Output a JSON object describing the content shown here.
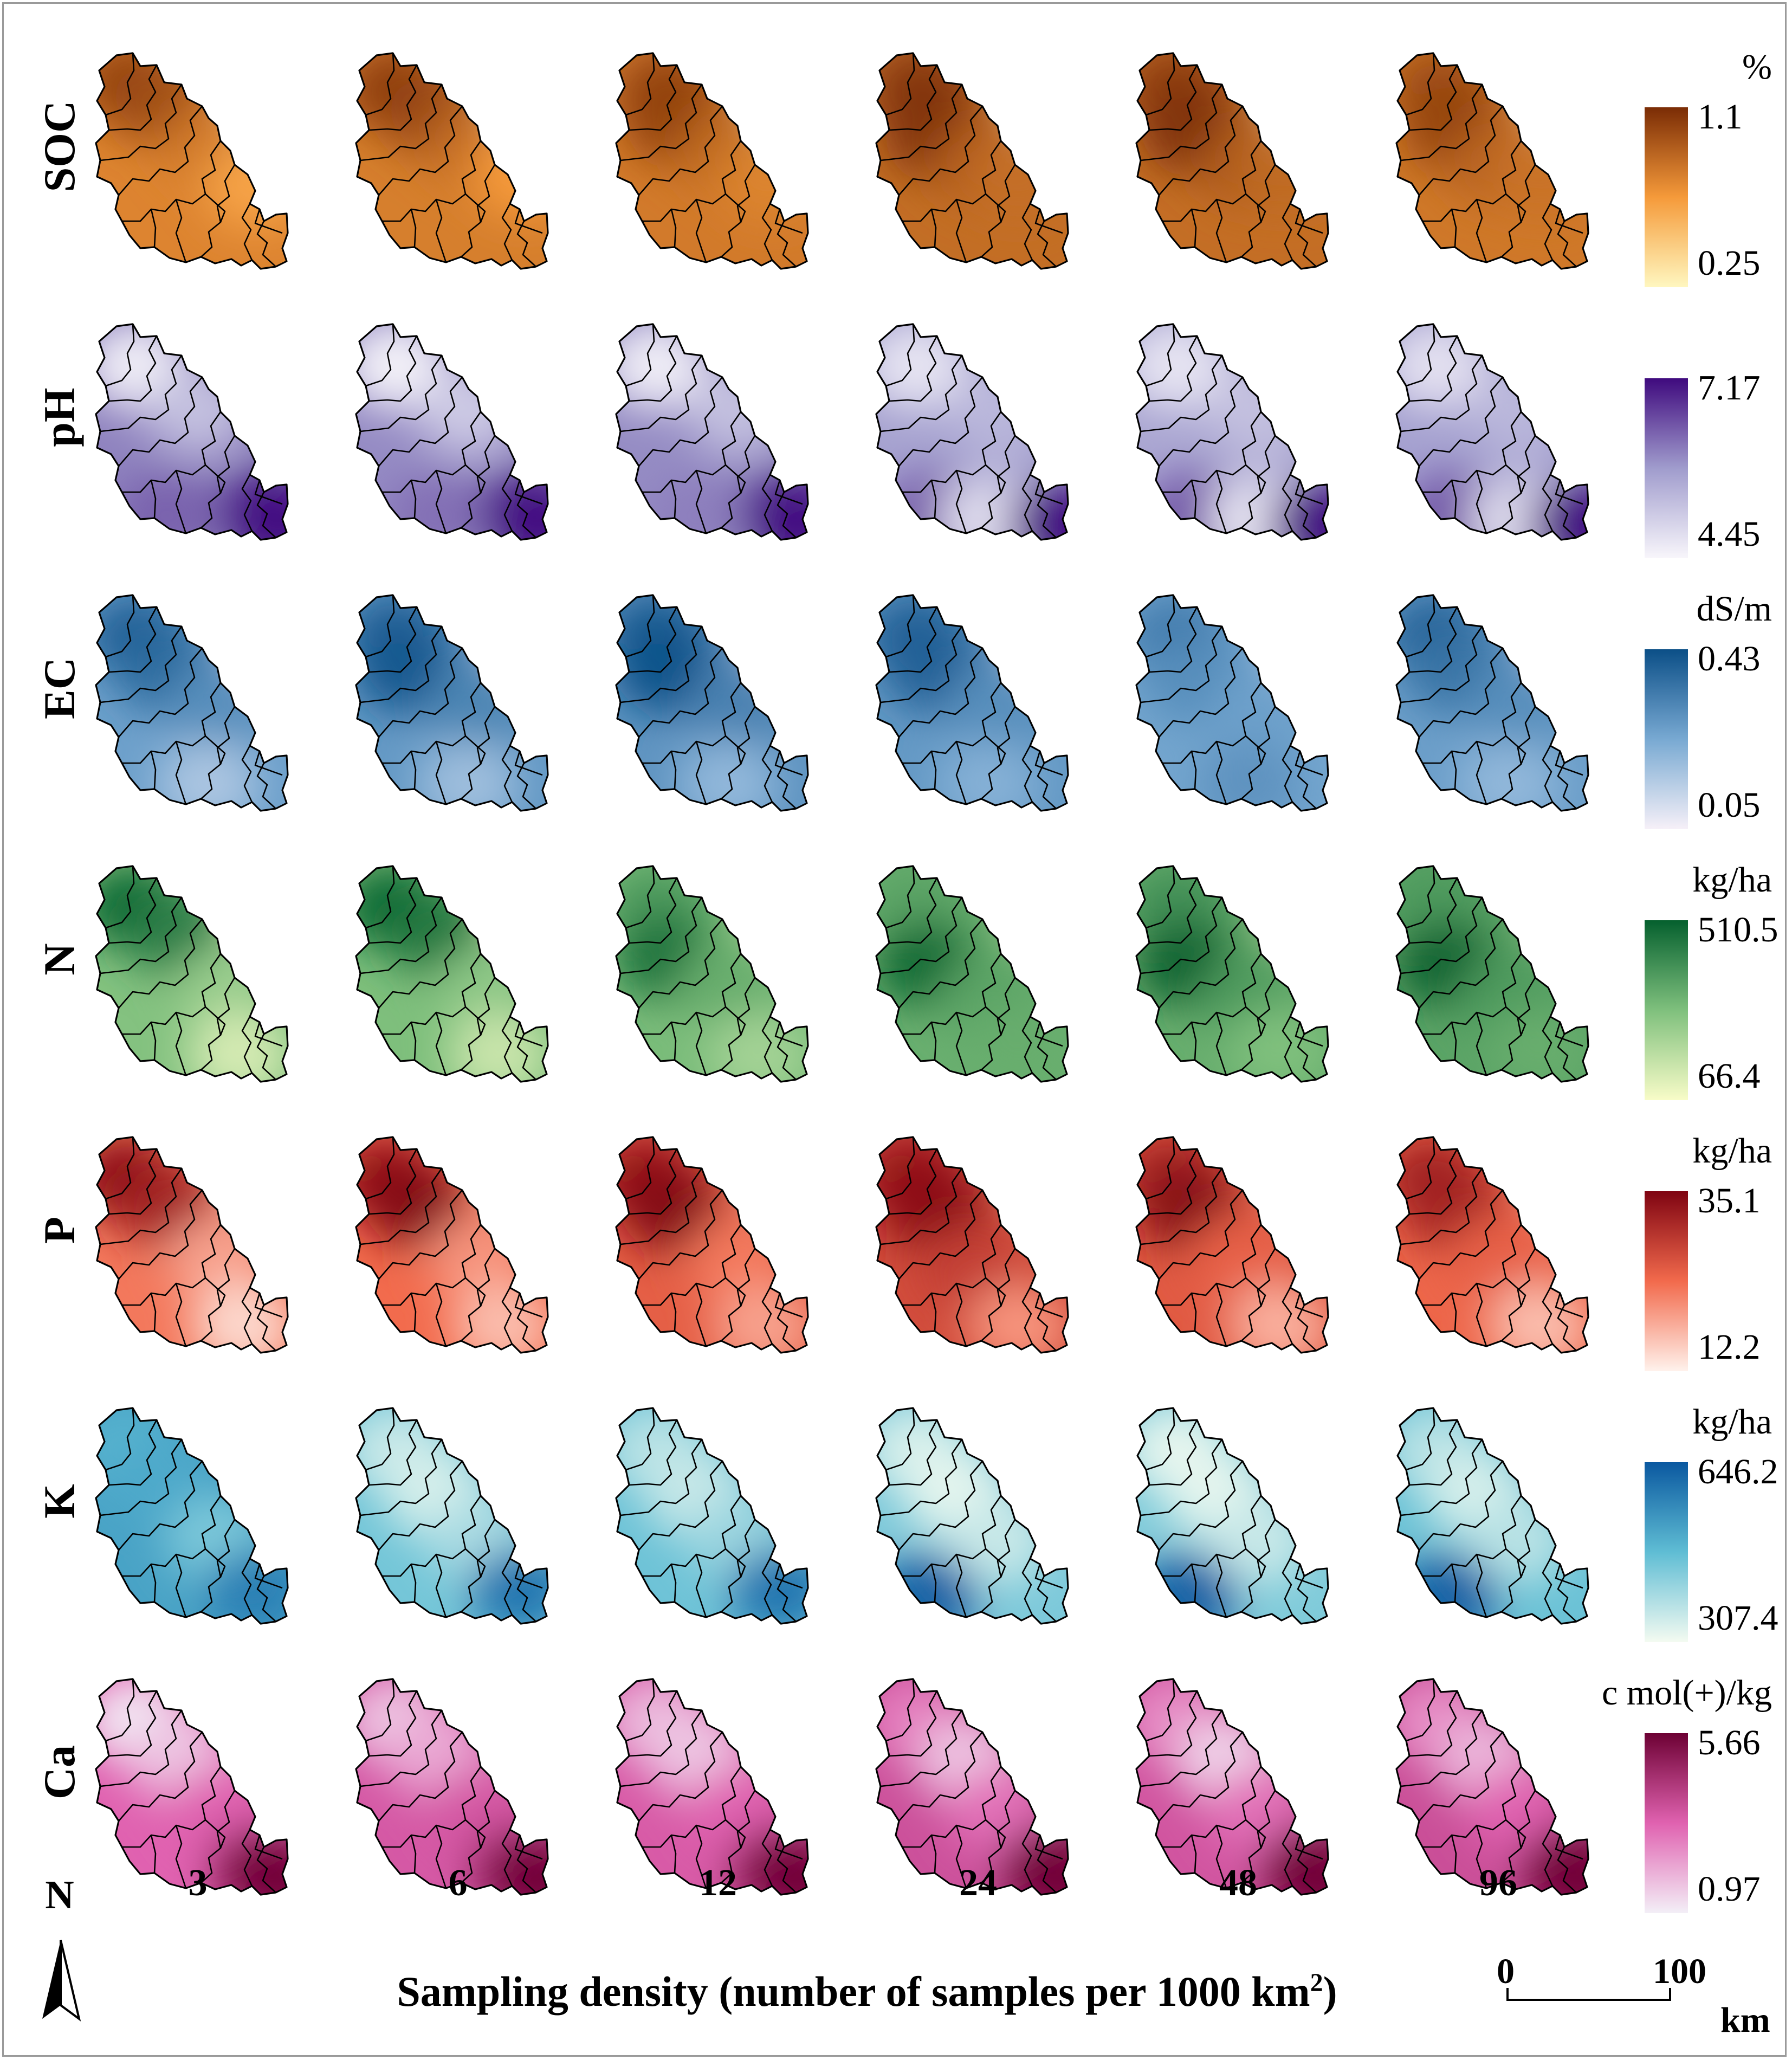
{
  "rows": [
    {
      "label": "SOC",
      "unit": "%",
      "legend_max": "1.1",
      "legend_min": "0.25",
      "color_low": "#fff7c0",
      "color_mid": "#f59a3a",
      "color_high": "#7a2c05"
    },
    {
      "label": "pH",
      "unit": "",
      "legend_max": "7.17",
      "legend_min": "4.45",
      "color_low": "#f8f6fb",
      "color_mid": "#a09ccd",
      "color_high": "#3f0a7e"
    },
    {
      "label": "EC",
      "unit": "dS/m",
      "legend_max": "0.43",
      "legend_min": "0.05",
      "color_low": "#f6f0f8",
      "color_mid": "#78a9d2",
      "color_high": "#0b4f87"
    },
    {
      "label": "N",
      "unit": "kg/ha",
      "legend_max": "510.5",
      "legend_min": "66.4",
      "color_low": "#f8fcc8",
      "color_mid": "#7fc07d",
      "color_high": "#05602e"
    },
    {
      "label": "P",
      "unit": "kg/ha",
      "legend_max": "35.1",
      "legend_min": "12.2",
      "color_low": "#fff2ec",
      "color_mid": "#f26a4c",
      "color_high": "#7f0412"
    },
    {
      "label": "K",
      "unit": "kg/ha",
      "legend_max": "646.2",
      "legend_min": "307.4",
      "color_low": "#f4fbf1",
      "color_mid": "#5fbdd4",
      "color_high": "#0a58a0"
    },
    {
      "label": "Ca",
      "unit": "c mol(+)/kg",
      "legend_max": "5.66",
      "legend_min": "0.97",
      "color_low": "#f3eff7",
      "color_mid": "#e062b0",
      "color_high": "#6d0134"
    }
  ],
  "columns": [
    "3",
    "6",
    "12",
    "24",
    "48",
    "96"
  ],
  "x_axis_title": "Sampling density (number of samples per 1000 km",
  "x_axis_title_sup": "2",
  "x_axis_title_end": ")",
  "north_label": "N",
  "scale_bar": {
    "start": "0",
    "end": "100",
    "unit": "km"
  },
  "maps": {
    "SOC": [
      [
        [
          0.92,
          0.18,
          0.16
        ],
        [
          0.85,
          0.32,
          0.24
        ],
        [
          0.65,
          0.58,
          0.42
        ],
        [
          0.45,
          0.78,
          0.6
        ],
        [
          0.12,
          0.93,
          0.2
        ]
      ],
      [
        [
          0.92,
          0.2,
          0.18
        ],
        [
          0.88,
          0.4,
          0.3
        ],
        [
          0.7,
          0.6,
          0.42
        ],
        [
          0.5,
          0.82,
          0.55
        ],
        [
          0.12,
          0.93,
          0.2
        ]
      ],
      [
        [
          0.9,
          0.25,
          0.2
        ],
        [
          0.9,
          0.3,
          0.32
        ],
        [
          0.72,
          0.55,
          0.45
        ],
        [
          0.6,
          0.75,
          0.58
        ],
        [
          0.1,
          0.93,
          0.2
        ]
      ],
      [
        [
          0.95,
          0.22,
          0.18
        ],
        [
          0.98,
          0.3,
          0.38
        ],
        [
          0.78,
          0.52,
          0.5
        ],
        [
          0.7,
          0.7,
          0.56
        ],
        [
          0.1,
          0.93,
          0.2
        ]
      ],
      [
        [
          0.92,
          0.2,
          0.18
        ],
        [
          0.98,
          0.28,
          0.36
        ],
        [
          0.8,
          0.55,
          0.5
        ],
        [
          0.72,
          0.74,
          0.52
        ],
        [
          0.08,
          0.93,
          0.2
        ]
      ],
      [
        [
          0.85,
          0.22,
          0.18
        ],
        [
          0.9,
          0.3,
          0.36
        ],
        [
          0.75,
          0.5,
          0.5
        ],
        [
          0.68,
          0.72,
          0.55
        ],
        [
          0.1,
          0.93,
          0.2
        ]
      ]
    ],
    "pH": [
      [
        [
          0.05,
          0.2,
          0.2
        ],
        [
          0.3,
          0.5,
          0.4
        ],
        [
          0.7,
          0.35,
          0.86
        ],
        [
          0.9,
          0.85,
          0.84
        ],
        [
          0.98,
          0.9,
          0.9
        ]
      ],
      [
        [
          0.03,
          0.2,
          0.2
        ],
        [
          0.25,
          0.55,
          0.4
        ],
        [
          0.65,
          0.4,
          0.86
        ],
        [
          0.88,
          0.85,
          0.84
        ],
        [
          0.98,
          0.9,
          0.9
        ]
      ],
      [
        [
          0.05,
          0.2,
          0.2
        ],
        [
          0.3,
          0.6,
          0.4
        ],
        [
          0.6,
          0.4,
          0.86
        ],
        [
          0.85,
          0.85,
          0.84
        ],
        [
          0.98,
          0.9,
          0.9
        ]
      ],
      [
        [
          0.1,
          0.2,
          0.2
        ],
        [
          0.35,
          0.6,
          0.4
        ],
        [
          0.75,
          0.3,
          0.86
        ],
        [
          0.15,
          0.55,
          0.88
        ],
        [
          0.98,
          0.9,
          0.9
        ]
      ],
      [
        [
          0.1,
          0.2,
          0.2
        ],
        [
          0.3,
          0.6,
          0.4
        ],
        [
          0.75,
          0.3,
          0.86
        ],
        [
          0.1,
          0.6,
          0.88
        ],
        [
          0.98,
          0.9,
          0.9
        ]
      ],
      [
        [
          0.12,
          0.2,
          0.2
        ],
        [
          0.35,
          0.6,
          0.4
        ],
        [
          0.75,
          0.3,
          0.86
        ],
        [
          0.15,
          0.6,
          0.88
        ],
        [
          0.98,
          0.9,
          0.9
        ]
      ]
    ],
    "EC": [
      [
        [
          0.9,
          0.2,
          0.2
        ],
        [
          0.85,
          0.35,
          0.35
        ],
        [
          0.65,
          0.6,
          0.5
        ],
        [
          0.3,
          0.55,
          0.85
        ],
        [
          0.05,
          0.93,
          0.2
        ]
      ],
      [
        [
          0.9,
          0.2,
          0.2
        ],
        [
          0.95,
          0.25,
          0.35
        ],
        [
          0.7,
          0.6,
          0.5
        ],
        [
          0.35,
          0.55,
          0.85
        ],
        [
          0.05,
          0.93,
          0.2
        ]
      ],
      [
        [
          0.92,
          0.2,
          0.2
        ],
        [
          0.98,
          0.25,
          0.35
        ],
        [
          0.72,
          0.6,
          0.5
        ],
        [
          0.4,
          0.55,
          0.85
        ],
        [
          0.05,
          0.93,
          0.2
        ]
      ],
      [
        [
          0.9,
          0.2,
          0.2
        ],
        [
          0.9,
          0.3,
          0.35
        ],
        [
          0.65,
          0.6,
          0.5
        ],
        [
          0.45,
          0.55,
          0.85
        ],
        [
          0.05,
          0.93,
          0.2
        ]
      ],
      [
        [
          0.75,
          0.2,
          0.2
        ],
        [
          0.65,
          0.3,
          0.4
        ],
        [
          0.55,
          0.6,
          0.55
        ],
        [
          0.62,
          0.55,
          0.85
        ],
        [
          0.05,
          0.93,
          0.2
        ]
      ],
      [
        [
          0.9,
          0.2,
          0.2
        ],
        [
          0.8,
          0.3,
          0.35
        ],
        [
          0.65,
          0.6,
          0.5
        ],
        [
          0.4,
          0.55,
          0.85
        ],
        [
          0.05,
          0.93,
          0.2
        ]
      ]
    ],
    "N": [
      [
        [
          0.95,
          0.18,
          0.2
        ],
        [
          0.85,
          0.4,
          0.32
        ],
        [
          0.4,
          0.65,
          0.55
        ],
        [
          0.15,
          0.7,
          0.85
        ],
        [
          0.05,
          0.93,
          0.2
        ]
      ],
      [
        [
          0.95,
          0.18,
          0.2
        ],
        [
          0.88,
          0.4,
          0.32
        ],
        [
          0.45,
          0.65,
          0.55
        ],
        [
          0.2,
          0.7,
          0.85
        ],
        [
          0.05,
          0.93,
          0.2
        ]
      ],
      [
        [
          0.7,
          0.2,
          0.2
        ],
        [
          0.9,
          0.25,
          0.42
        ],
        [
          0.6,
          0.55,
          0.55
        ],
        [
          0.35,
          0.7,
          0.85
        ],
        [
          0.05,
          0.93,
          0.2
        ]
      ],
      [
        [
          0.65,
          0.2,
          0.2
        ],
        [
          0.95,
          0.25,
          0.45
        ],
        [
          0.65,
          0.55,
          0.6
        ],
        [
          0.6,
          0.7,
          0.8
        ],
        [
          0.1,
          0.93,
          0.2
        ]
      ],
      [
        [
          0.75,
          0.2,
          0.2
        ],
        [
          0.98,
          0.25,
          0.45
        ],
        [
          0.7,
          0.55,
          0.6
        ],
        [
          0.5,
          0.7,
          0.82
        ],
        [
          0.05,
          0.93,
          0.2
        ]
      ],
      [
        [
          0.7,
          0.2,
          0.2
        ],
        [
          0.98,
          0.25,
          0.45
        ],
        [
          0.7,
          0.55,
          0.6
        ],
        [
          0.6,
          0.7,
          0.82
        ],
        [
          0.25,
          0.93,
          0.2
        ]
      ]
    ],
    "P": [
      [
        [
          0.95,
          0.15,
          0.2
        ],
        [
          0.85,
          0.35,
          0.32
        ],
        [
          0.3,
          0.6,
          0.55
        ],
        [
          0.1,
          0.72,
          0.85
        ],
        [
          0.05,
          0.93,
          0.2
        ]
      ],
      [
        [
          0.9,
          0.15,
          0.2
        ],
        [
          0.98,
          0.3,
          0.32
        ],
        [
          0.35,
          0.6,
          0.55
        ],
        [
          0.2,
          0.72,
          0.85
        ],
        [
          0.05,
          0.93,
          0.2
        ]
      ],
      [
        [
          0.9,
          0.15,
          0.2
        ],
        [
          0.98,
          0.28,
          0.34
        ],
        [
          0.45,
          0.6,
          0.55
        ],
        [
          0.3,
          0.72,
          0.85
        ],
        [
          0.15,
          0.93,
          0.2
        ]
      ],
      [
        [
          0.9,
          0.18,
          0.2
        ],
        [
          0.95,
          0.3,
          0.35
        ],
        [
          0.7,
          0.45,
          0.6
        ],
        [
          0.35,
          0.7,
          0.85
        ],
        [
          0.3,
          0.93,
          0.2
        ]
      ],
      [
        [
          0.85,
          0.18,
          0.2
        ],
        [
          0.98,
          0.28,
          0.35
        ],
        [
          0.55,
          0.5,
          0.55
        ],
        [
          0.25,
          0.7,
          0.85
        ],
        [
          0.25,
          0.93,
          0.2
        ]
      ],
      [
        [
          0.85,
          0.18,
          0.2
        ],
        [
          0.85,
          0.3,
          0.35
        ],
        [
          0.55,
          0.5,
          0.55
        ],
        [
          0.2,
          0.7,
          0.85
        ],
        [
          0.15,
          0.93,
          0.2
        ]
      ]
    ],
    "K": [
      [
        [
          0.55,
          0.15,
          0.2
        ],
        [
          0.6,
          0.3,
          0.35
        ],
        [
          0.4,
          0.6,
          0.6
        ],
        [
          0.8,
          0.78,
          0.82
        ],
        [
          0.8,
          0.93,
          0.2
        ]
      ],
      [
        [
          0.15,
          0.2,
          0.2
        ],
        [
          0.1,
          0.4,
          0.4
        ],
        [
          0.25,
          0.6,
          0.6
        ],
        [
          0.85,
          0.8,
          0.82
        ],
        [
          0.8,
          0.93,
          0.2
        ]
      ],
      [
        [
          0.2,
          0.2,
          0.2
        ],
        [
          0.15,
          0.4,
          0.4
        ],
        [
          0.3,
          0.6,
          0.6
        ],
        [
          0.85,
          0.8,
          0.82
        ],
        [
          0.75,
          0.93,
          0.2
        ]
      ],
      [
        [
          0.1,
          0.2,
          0.2
        ],
        [
          0.05,
          0.4,
          0.4
        ],
        [
          0.15,
          0.6,
          0.6
        ],
        [
          0.95,
          0.25,
          0.85
        ],
        [
          0.75,
          0.93,
          0.2
        ]
      ],
      [
        [
          0.05,
          0.2,
          0.2
        ],
        [
          0.05,
          0.4,
          0.4
        ],
        [
          0.15,
          0.6,
          0.6
        ],
        [
          0.95,
          0.25,
          0.85
        ],
        [
          0.75,
          0.93,
          0.2
        ]
      ],
      [
        [
          0.2,
          0.2,
          0.2
        ],
        [
          0.1,
          0.4,
          0.4
        ],
        [
          0.2,
          0.6,
          0.6
        ],
        [
          0.95,
          0.25,
          0.85
        ],
        [
          0.85,
          0.93,
          0.2
        ]
      ]
    ],
    "Ca": [
      [
        [
          0.02,
          0.2,
          0.2
        ],
        [
          0.15,
          0.4,
          0.35
        ],
        [
          0.5,
          0.6,
          0.6
        ],
        [
          0.85,
          0.8,
          0.85
        ],
        [
          0.98,
          0.9,
          0.9
        ]
      ],
      [
        [
          0.15,
          0.2,
          0.2
        ],
        [
          0.25,
          0.4,
          0.35
        ],
        [
          0.55,
          0.6,
          0.6
        ],
        [
          0.8,
          0.8,
          0.85
        ],
        [
          0.98,
          0.9,
          0.9
        ]
      ],
      [
        [
          0.2,
          0.2,
          0.2
        ],
        [
          0.15,
          0.4,
          0.35
        ],
        [
          0.5,
          0.6,
          0.6
        ],
        [
          0.85,
          0.8,
          0.85
        ],
        [
          0.98,
          0.9,
          0.9
        ]
      ],
      [
        [
          0.4,
          0.2,
          0.2
        ],
        [
          0.15,
          0.45,
          0.38
        ],
        [
          0.45,
          0.6,
          0.6
        ],
        [
          0.95,
          0.85,
          0.85
        ],
        [
          0.98,
          0.9,
          0.9
        ]
      ],
      [
        [
          0.35,
          0.2,
          0.2
        ],
        [
          0.1,
          0.45,
          0.38
        ],
        [
          0.45,
          0.6,
          0.6
        ],
        [
          0.95,
          0.85,
          0.85
        ],
        [
          0.98,
          0.9,
          0.9
        ]
      ],
      [
        [
          0.35,
          0.2,
          0.2
        ],
        [
          0.2,
          0.45,
          0.38
        ],
        [
          0.5,
          0.6,
          0.6
        ],
        [
          0.95,
          0.85,
          0.85
        ],
        [
          0.98,
          0.9,
          0.9
        ]
      ]
    ]
  }
}
